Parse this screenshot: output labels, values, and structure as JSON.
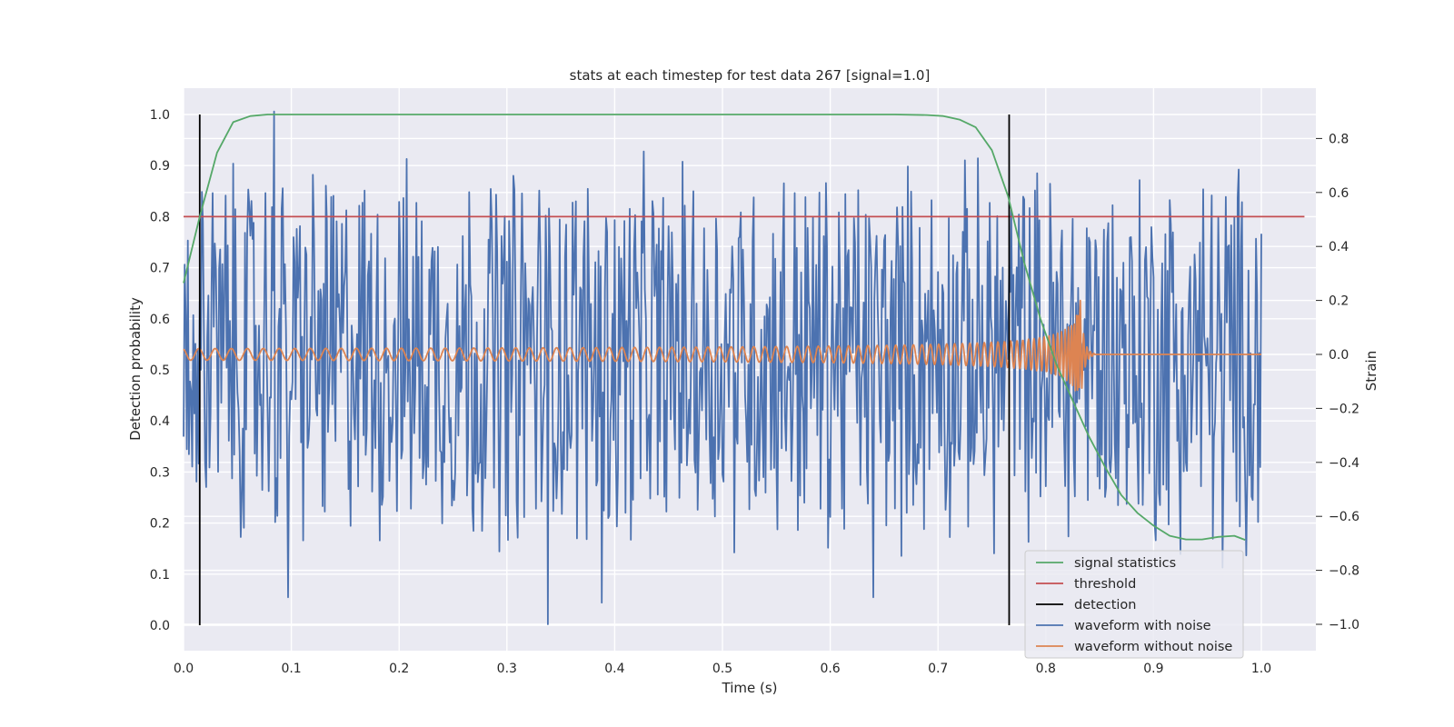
{
  "chart_data": {
    "type": "line",
    "title": "stats at each timestep for test data 267 [signal=1.0]",
    "xlabel": "Time (s)",
    "ylabel_left": "Detection probability",
    "ylabel_right": "Strain",
    "xlim": [
      0.0,
      1.05
    ],
    "ylim_left": [
      -0.05,
      1.05
    ],
    "ylim_right": [
      -1.09,
      0.99
    ],
    "x_ticks": [
      "0.0",
      "0.1",
      "0.2",
      "0.3",
      "0.4",
      "0.5",
      "0.6",
      "0.7",
      "0.8",
      "0.9",
      "1.0"
    ],
    "y_ticks_left": [
      "0.0",
      "0.1",
      "0.2",
      "0.3",
      "0.4",
      "0.5",
      "0.6",
      "0.7",
      "0.8",
      "0.9",
      "1.0"
    ],
    "y_ticks_right": [
      "−1.0",
      "−0.8",
      "−0.6",
      "−0.4",
      "−0.2",
      "0.0",
      "0.2",
      "0.4",
      "0.6",
      "0.8"
    ],
    "grid": true,
    "legend_position": "lower-right",
    "series": [
      {
        "name": "signal statistics",
        "axis": "left",
        "color": "#55a868",
        "x": [
          0.0,
          0.015,
          0.031,
          0.046,
          0.062,
          0.078,
          0.1,
          0.2,
          0.3,
          0.4,
          0.5,
          0.6,
          0.66,
          0.69,
          0.705,
          0.72,
          0.735,
          0.75,
          0.765,
          0.78,
          0.795,
          0.81,
          0.825,
          0.84,
          0.855,
          0.87,
          0.885,
          0.9,
          0.915,
          0.93,
          0.945,
          0.96,
          0.975,
          0.985
        ],
        "y": [
          0.67,
          0.8,
          0.925,
          0.985,
          0.997,
          1.0,
          1.0,
          1.0,
          1.0,
          1.0,
          1.0,
          1.0,
          1.0,
          0.999,
          0.997,
          0.99,
          0.975,
          0.93,
          0.84,
          0.71,
          0.6,
          0.51,
          0.44,
          0.37,
          0.31,
          0.255,
          0.22,
          0.195,
          0.175,
          0.168,
          0.168,
          0.173,
          0.175,
          0.167
        ]
      },
      {
        "name": "threshold",
        "axis": "left",
        "color": "#c44e52",
        "x": [
          0.0,
          1.04
        ],
        "y": [
          0.8,
          0.8
        ]
      },
      {
        "name": "detection",
        "axis": "left",
        "color": "#000000",
        "x_positions": [
          0.015,
          0.766
        ],
        "y_range": [
          0.0,
          1.0
        ]
      },
      {
        "name": "waveform with noise",
        "axis": "right",
        "color": "#4c72b0",
        "description_values": {
          "x_start": 0.0,
          "x_end": 1.0,
          "strain_min": -1.0,
          "strain_max": 0.9,
          "typical_amplitude": 0.3,
          "notable_points": [
            [
              0.005,
              -0.37
            ],
            [
              0.084,
              0.9
            ],
            [
              0.097,
              -0.9
            ],
            [
              0.338,
              -1.0
            ],
            [
              0.388,
              -0.92
            ],
            [
              0.64,
              -0.9
            ],
            [
              0.925,
              -0.74
            ],
            [
              0.964,
              -0.79
            ]
          ]
        }
      },
      {
        "name": "waveform without noise",
        "axis": "right",
        "color": "#dd8452",
        "description_values": {
          "x_start": 0.0,
          "x_end": 1.0,
          "chirp_start_amplitude": 0.01,
          "peak_time": 0.832,
          "peak_amplitude": 0.22,
          "ringdown_end": 0.845
        }
      }
    ]
  }
}
